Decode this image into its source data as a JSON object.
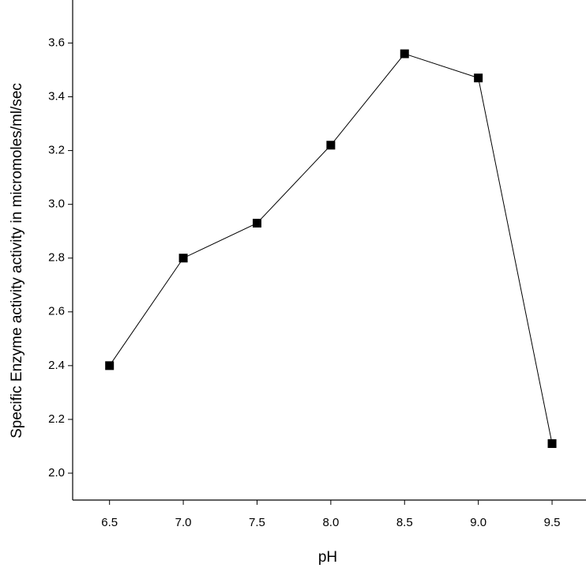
{
  "chart_data": {
    "type": "line",
    "x_label": "pH",
    "y_label": "Specific Enzyme activity activity in micromoles/ml/sec",
    "x": [
      6.5,
      7.0,
      7.5,
      8.0,
      8.5,
      9.0,
      9.5
    ],
    "series": [
      {
        "color": "#000000",
        "values": [
          2.4,
          2.8,
          2.93,
          3.22,
          3.56,
          3.47,
          2.11
        ]
      }
    ],
    "xlim": [
      6.25,
      9.73
    ],
    "ylim": [
      1.9,
      3.76
    ],
    "xticks": [
      6.5,
      {
        "value": 7.0,
        "label": "7.0"
      },
      7.5,
      {
        "value": 8.0,
        "label": "8.0"
      },
      8.5,
      {
        "value": 9.0,
        "label": "9.0"
      },
      9.5
    ],
    "yticks": [
      {
        "value": 2.0,
        "label": "2.0"
      },
      2.2,
      2.4,
      2.6,
      2.8,
      {
        "value": 3.0,
        "label": "3.0"
      },
      3.2,
      3.4,
      3.6
    ]
  }
}
